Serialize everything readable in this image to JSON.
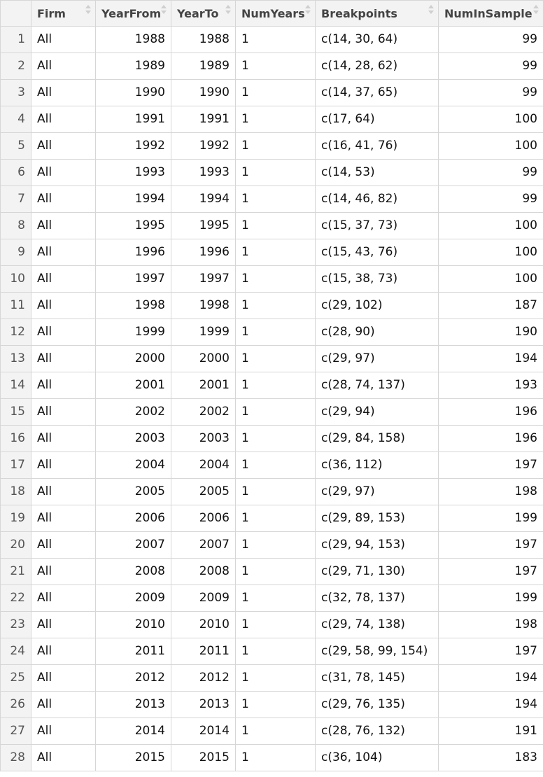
{
  "columns": [
    "Firm",
    "YearFrom",
    "YearTo",
    "NumYears",
    "Breakpoints",
    "NumInSample"
  ],
  "rows": [
    [
      "1",
      "All",
      "1988",
      "1988",
      "1",
      "c(14, 30, 64)",
      "99"
    ],
    [
      "2",
      "All",
      "1989",
      "1989",
      "1",
      "c(14, 28, 62)",
      "99"
    ],
    [
      "3",
      "All",
      "1990",
      "1990",
      "1",
      "c(14, 37, 65)",
      "99"
    ],
    [
      "4",
      "All",
      "1991",
      "1991",
      "1",
      "c(17, 64)",
      "100"
    ],
    [
      "5",
      "All",
      "1992",
      "1992",
      "1",
      "c(16, 41, 76)",
      "100"
    ],
    [
      "6",
      "All",
      "1993",
      "1993",
      "1",
      "c(14, 53)",
      "99"
    ],
    [
      "7",
      "All",
      "1994",
      "1994",
      "1",
      "c(14, 46, 82)",
      "99"
    ],
    [
      "8",
      "All",
      "1995",
      "1995",
      "1",
      "c(15, 37, 73)",
      "100"
    ],
    [
      "9",
      "All",
      "1996",
      "1996",
      "1",
      "c(15, 43, 76)",
      "100"
    ],
    [
      "10",
      "All",
      "1997",
      "1997",
      "1",
      "c(15, 38, 73)",
      "100"
    ],
    [
      "11",
      "All",
      "1998",
      "1998",
      "1",
      "c(29, 102)",
      "187"
    ],
    [
      "12",
      "All",
      "1999",
      "1999",
      "1",
      "c(28, 90)",
      "190"
    ],
    [
      "13",
      "All",
      "2000",
      "2000",
      "1",
      "c(29, 97)",
      "194"
    ],
    [
      "14",
      "All",
      "2001",
      "2001",
      "1",
      "c(28, 74, 137)",
      "193"
    ],
    [
      "15",
      "All",
      "2002",
      "2002",
      "1",
      "c(29, 94)",
      "196"
    ],
    [
      "16",
      "All",
      "2003",
      "2003",
      "1",
      "c(29, 84, 158)",
      "196"
    ],
    [
      "17",
      "All",
      "2004",
      "2004",
      "1",
      "c(36, 112)",
      "197"
    ],
    [
      "18",
      "All",
      "2005",
      "2005",
      "1",
      "c(29, 97)",
      "198"
    ],
    [
      "19",
      "All",
      "2006",
      "2006",
      "1",
      "c(29, 89, 153)",
      "199"
    ],
    [
      "20",
      "All",
      "2007",
      "2007",
      "1",
      "c(29, 94, 153)",
      "197"
    ],
    [
      "21",
      "All",
      "2008",
      "2008",
      "1",
      "c(29, 71, 130)",
      "197"
    ],
    [
      "22",
      "All",
      "2009",
      "2009",
      "1",
      "c(32, 78, 137)",
      "199"
    ],
    [
      "23",
      "All",
      "2010",
      "2010",
      "1",
      "c(29, 74, 138)",
      "198"
    ],
    [
      "24",
      "All",
      "2011",
      "2011",
      "1",
      "c(29, 58, 99, 154)",
      "197"
    ],
    [
      "25",
      "All",
      "2012",
      "2012",
      "1",
      "c(31, 78, 145)",
      "194"
    ],
    [
      "26",
      "All",
      "2013",
      "2013",
      "1",
      "c(29, 76, 135)",
      "194"
    ],
    [
      "27",
      "All",
      "2014",
      "2014",
      "1",
      "c(28, 76, 132)",
      "191"
    ],
    [
      "28",
      "All",
      "2015",
      "2015",
      "1",
      "c(36, 104)",
      "183"
    ]
  ]
}
